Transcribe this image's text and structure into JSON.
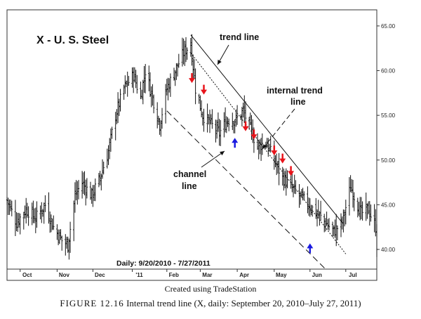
{
  "chart_data": {
    "type": "bar",
    "subtype": "ohlc",
    "title": "X - U. S. Steel",
    "range_label": "Daily: 9/20/2010 - 7/27/2011",
    "x_axis": {
      "ticks": [
        "Oct",
        "Nov",
        "Dec",
        "'11",
        "Feb",
        "Mar",
        "Apr",
        "May",
        "Jun",
        "Jul"
      ],
      "tick_dates": [
        "2010-10-01",
        "2010-11-01",
        "2010-12-01",
        "2011-01-03",
        "2011-02-01",
        "2011-03-01",
        "2011-04-01",
        "2011-05-02",
        "2011-06-01",
        "2011-07-01"
      ],
      "start": "2010-09-20",
      "end": "2011-07-27"
    },
    "y_axis": {
      "ticks": [
        "65.00",
        "60.00",
        "55.00",
        "50.00",
        "45.00",
        "40.00"
      ],
      "range": [
        37.8,
        66.8
      ],
      "side": "right"
    },
    "anchors": [
      [
        "2010-09-20",
        45.5
      ],
      [
        "2010-09-28",
        43
      ],
      [
        "2010-10-06",
        44.5
      ],
      [
        "2010-10-14",
        43.5
      ],
      [
        "2010-10-22",
        45
      ],
      [
        "2010-10-29",
        42.5
      ],
      [
        "2010-11-05",
        41
      ],
      [
        "2010-11-10",
        40.5
      ],
      [
        "2010-11-16",
        46
      ],
      [
        "2010-11-22",
        47.5
      ],
      [
        "2010-11-30",
        46
      ],
      [
        "2010-12-07",
        48
      ],
      [
        "2010-12-14",
        51
      ],
      [
        "2010-12-20",
        55
      ],
      [
        "2010-12-27",
        58
      ],
      [
        "2011-01-04",
        59.5
      ],
      [
        "2011-01-10",
        57
      ],
      [
        "2011-01-14",
        60
      ],
      [
        "2011-01-20",
        57
      ],
      [
        "2011-01-26",
        54
      ],
      [
        "2011-02-01",
        58
      ],
      [
        "2011-02-08",
        60
      ],
      [
        "2011-02-15",
        62
      ],
      [
        "2011-02-21",
        63
      ],
      [
        "2011-02-25",
        58
      ],
      [
        "2011-03-03",
        55
      ],
      [
        "2011-03-10",
        54
      ],
      [
        "2011-03-17",
        53
      ],
      [
        "2011-03-24",
        54.5
      ],
      [
        "2011-03-31",
        54.5
      ],
      [
        "2011-04-06",
        55.5
      ],
      [
        "2011-04-12",
        53.5
      ],
      [
        "2011-04-18",
        51.5
      ],
      [
        "2011-04-25",
        52
      ],
      [
        "2011-05-02",
        50
      ],
      [
        "2011-05-09",
        48
      ],
      [
        "2011-05-16",
        47
      ],
      [
        "2011-05-23",
        46
      ],
      [
        "2011-05-31",
        45
      ],
      [
        "2011-06-07",
        44
      ],
      [
        "2011-06-14",
        43
      ],
      [
        "2011-06-21",
        42
      ],
      [
        "2011-06-28",
        43
      ],
      [
        "2011-07-05",
        47
      ],
      [
        "2011-07-08",
        46
      ],
      [
        "2011-07-14",
        44
      ],
      [
        "2011-07-20",
        44.5
      ],
      [
        "2011-07-26",
        42.5
      ],
      [
        "2011-07-27",
        40.5
      ]
    ],
    "trendlines": [
      {
        "name": "trend line",
        "style": "solid",
        "from": [
          "2011-02-21",
          64
        ],
        "to": [
          "2011-06-28",
          43
        ]
      },
      {
        "name": "internal trend line",
        "style": "dotted",
        "from": [
          "2011-02-21",
          62
        ],
        "to": [
          "2011-07-01",
          39.5
        ]
      },
      {
        "name": "channel line",
        "style": "dashed",
        "from": [
          "2011-02-01",
          55.5
        ],
        "to": [
          "2011-06-14",
          37.8
        ]
      }
    ],
    "annotations": [
      {
        "text": "trend line",
        "pointer": "arrow-to-line"
      },
      {
        "text": "internal trend line",
        "lines": [
          "internal trend",
          "line"
        ],
        "pointer": "arrow-to-line"
      },
      {
        "text": "channel line",
        "lines": [
          "channel",
          "line"
        ],
        "pointer": "arrow-to-line"
      }
    ],
    "markers": [
      {
        "kind": "down-arrow",
        "color": "#e8141b",
        "date": "2011-02-22",
        "price": 58.7
      },
      {
        "kind": "down-arrow",
        "color": "#e8141b",
        "date": "2011-03-04",
        "price": 57.4
      },
      {
        "kind": "down-arrow",
        "color": "#e8141b",
        "date": "2011-04-08",
        "price": 53.3
      },
      {
        "kind": "down-arrow",
        "color": "#e8141b",
        "date": "2011-04-15",
        "price": 52.4
      },
      {
        "kind": "down-arrow",
        "color": "#e8141b",
        "date": "2011-05-02",
        "price": 50.6
      },
      {
        "kind": "down-arrow",
        "color": "#e8141b",
        "date": "2011-05-09",
        "price": 49.7
      },
      {
        "kind": "down-arrow",
        "color": "#e8141b",
        "date": "2011-05-16",
        "price": 48.3
      },
      {
        "kind": "up-arrow",
        "color": "#1a1ae0",
        "date": "2011-03-30",
        "price": 52.4
      },
      {
        "kind": "up-arrow",
        "color": "#1a1ae0",
        "date": "2011-06-01",
        "price": 40.6
      }
    ],
    "grid": false
  },
  "captions": {
    "created": "Created using TradeStation",
    "figure_number": "FIGURE 12.16",
    "figure_text": "Internal trend line (X, daily: September 20, 2010–July 27, 2011)"
  }
}
